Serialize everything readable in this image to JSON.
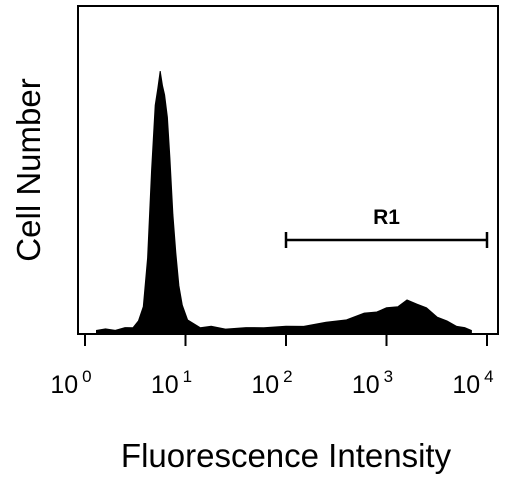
{
  "chart_data": {
    "type": "area",
    "title": "",
    "xlabel": "Fluorescence Intensity",
    "ylabel": "Cell Number",
    "x_scale": "log",
    "xlim": [
      1,
      10000
    ],
    "x_ticks": [
      {
        "base": "10",
        "exp": "0",
        "value": 1
      },
      {
        "base": "10",
        "exp": "1",
        "value": 10
      },
      {
        "base": "10",
        "exp": "2",
        "value": 100
      },
      {
        "base": "10",
        "exp": "3",
        "value": 1000
      },
      {
        "base": "10",
        "exp": "4",
        "value": 10000
      }
    ],
    "y_ticks_shown": false,
    "grid": false,
    "fill_color": "#000000",
    "series": [
      {
        "x": [
          1.3,
          1.6,
          2.0,
          2.5,
          3.0,
          3.4,
          3.8,
          4.2,
          4.6,
          5.0,
          5.3,
          5.6,
          5.9,
          6.2,
          6.6,
          7.0,
          7.5,
          8.0,
          8.6,
          9.3,
          10.5,
          12,
          14,
          18,
          25,
          40,
          60,
          100,
          150,
          250,
          400,
          600,
          800,
          1000,
          1300,
          1600,
          2000,
          2500,
          3200,
          4000,
          5000,
          6000,
          7000
        ],
        "y": [
          0.01,
          0.01,
          0.01,
          0.015,
          0.02,
          0.04,
          0.1,
          0.28,
          0.62,
          0.86,
          0.93,
          0.99,
          0.94,
          0.9,
          0.82,
          0.66,
          0.45,
          0.3,
          0.18,
          0.1,
          0.05,
          0.03,
          0.02,
          0.02,
          0.015,
          0.015,
          0.02,
          0.02,
          0.025,
          0.035,
          0.05,
          0.07,
          0.08,
          0.09,
          0.1,
          0.12,
          0.11,
          0.09,
          0.06,
          0.04,
          0.025,
          0.015,
          0.01
        ]
      }
    ],
    "annotations": [
      {
        "type": "gate",
        "label": "R1",
        "x_start": 100,
        "x_end": 10000
      }
    ]
  }
}
